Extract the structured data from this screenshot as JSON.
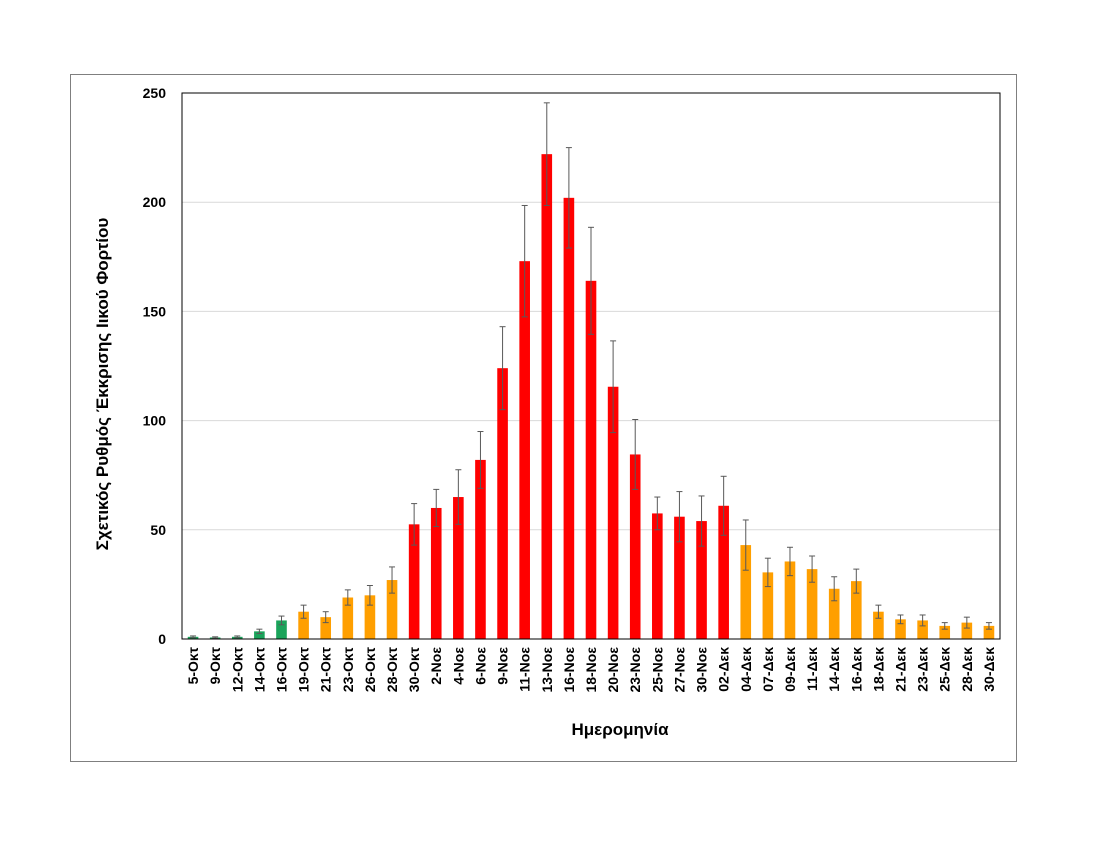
{
  "chart_data": {
    "type": "bar",
    "title": "",
    "xlabel": "Ημερομηνία",
    "ylabel": "Σχετικός Ρυθμός Έκκρισης Ιικού Φορτίου",
    "ylim": [
      0,
      250
    ],
    "yticks": [
      0,
      50,
      100,
      150,
      200,
      250
    ],
    "grid": true,
    "legend": "none",
    "colors": {
      "green": "#1aa35a",
      "orange": "#ff9f00",
      "red": "#ff0000",
      "grid": "#d9d9d9",
      "errorbar": "#595959"
    },
    "categories": [
      "5-Οκτ",
      "9-Οκτ",
      "12-Οκτ",
      "14-Οκτ",
      "16-Οκτ",
      "19-Οκτ",
      "21-Οκτ",
      "23-Οκτ",
      "26-Οκτ",
      "28-Οκτ",
      "30-Οκτ",
      "2-Νοε",
      "4-Νοε",
      "6-Νοε",
      "9-Νοε",
      "11-Νοε",
      "13-Νοε",
      "16-Νοε",
      "18-Νοε",
      "20-Νοε",
      "23-Νοε",
      "25-Νοε",
      "27-Νοε",
      "30-Νοε",
      "02-Δεκ",
      "04-Δεκ",
      "07-Δεκ",
      "09-Δεκ",
      "11-Δεκ",
      "14-Δεκ",
      "16-Δεκ",
      "18-Δεκ",
      "21-Δεκ",
      "23-Δεκ",
      "25-Δεκ",
      "28-Δεκ",
      "30-Δεκ"
    ],
    "values": [
      1,
      0.7,
      1,
      3.5,
      8.5,
      12.5,
      10,
      19,
      20,
      27,
      52.5,
      60,
      65,
      82,
      124,
      173,
      222,
      202,
      164,
      115.5,
      84.5,
      57.5,
      56,
      54,
      61,
      43,
      30.5,
      35.5,
      32,
      23,
      26.5,
      12.5,
      9,
      8.5,
      6,
      7.5,
      6
    ],
    "errors": [
      0.4,
      0.3,
      0.4,
      1,
      2,
      3,
      2.5,
      3.5,
      4.5,
      6,
      9.5,
      8.5,
      12.5,
      13,
      19,
      25.5,
      23.5,
      23,
      24.5,
      21,
      16,
      7.5,
      11.5,
      11.5,
      13.5,
      11.5,
      6.5,
      6.5,
      6,
      5.5,
      5.5,
      3,
      2,
      2.5,
      1.5,
      2.5,
      1.5
    ],
    "bar_colors": [
      "green",
      "green",
      "green",
      "green",
      "green",
      "orange",
      "orange",
      "orange",
      "orange",
      "orange",
      "red",
      "red",
      "red",
      "red",
      "red",
      "red",
      "red",
      "red",
      "red",
      "red",
      "red",
      "red",
      "red",
      "red",
      "red",
      "orange",
      "orange",
      "orange",
      "orange",
      "orange",
      "orange",
      "orange",
      "orange",
      "orange",
      "orange",
      "orange",
      "orange"
    ]
  }
}
